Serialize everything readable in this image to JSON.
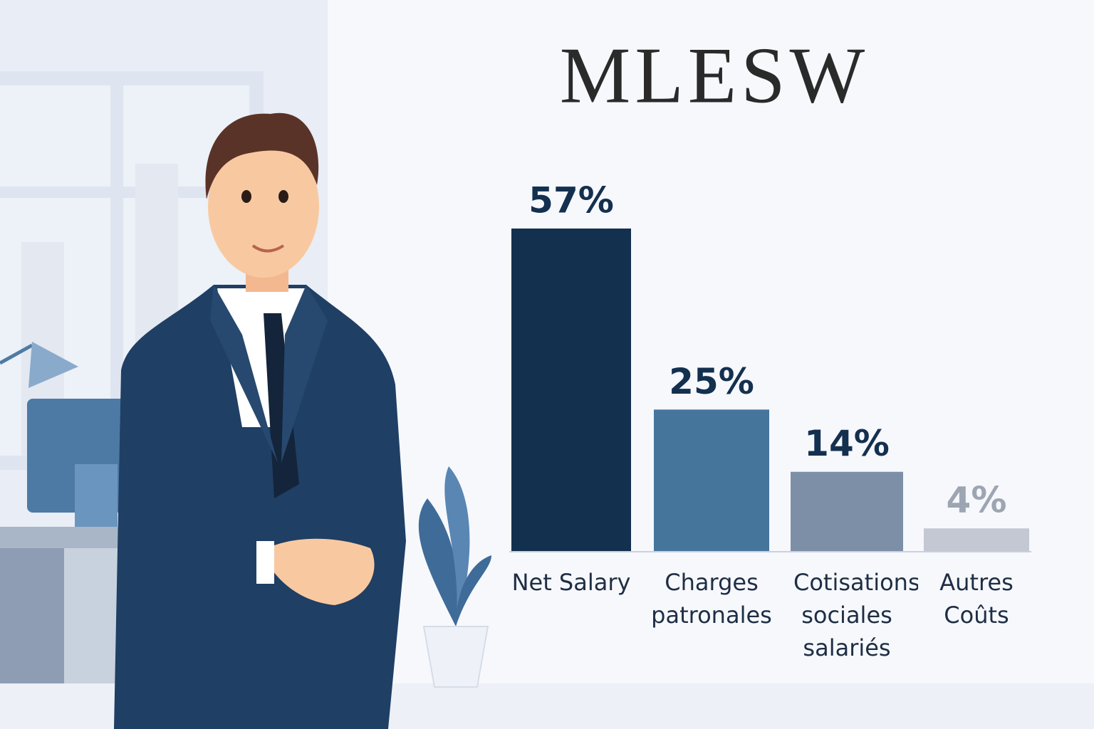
{
  "chart_data": {
    "type": "bar",
    "title": "MLESW",
    "categories": [
      "Net Salary",
      "Charges patronales",
      "Cotisations sociales salariés",
      "Autres Coûts"
    ],
    "values": [
      57,
      25,
      14,
      4
    ],
    "value_labels": [
      "57%",
      "25%",
      "14%",
      "4%"
    ],
    "colors": [
      "#14304f",
      "#46759c",
      "#7d8fa6",
      "#c3c8d2"
    ],
    "value_label_colors": [
      "#14304f",
      "#14304f",
      "#14304f",
      "#9ea5b2"
    ]
  }
}
